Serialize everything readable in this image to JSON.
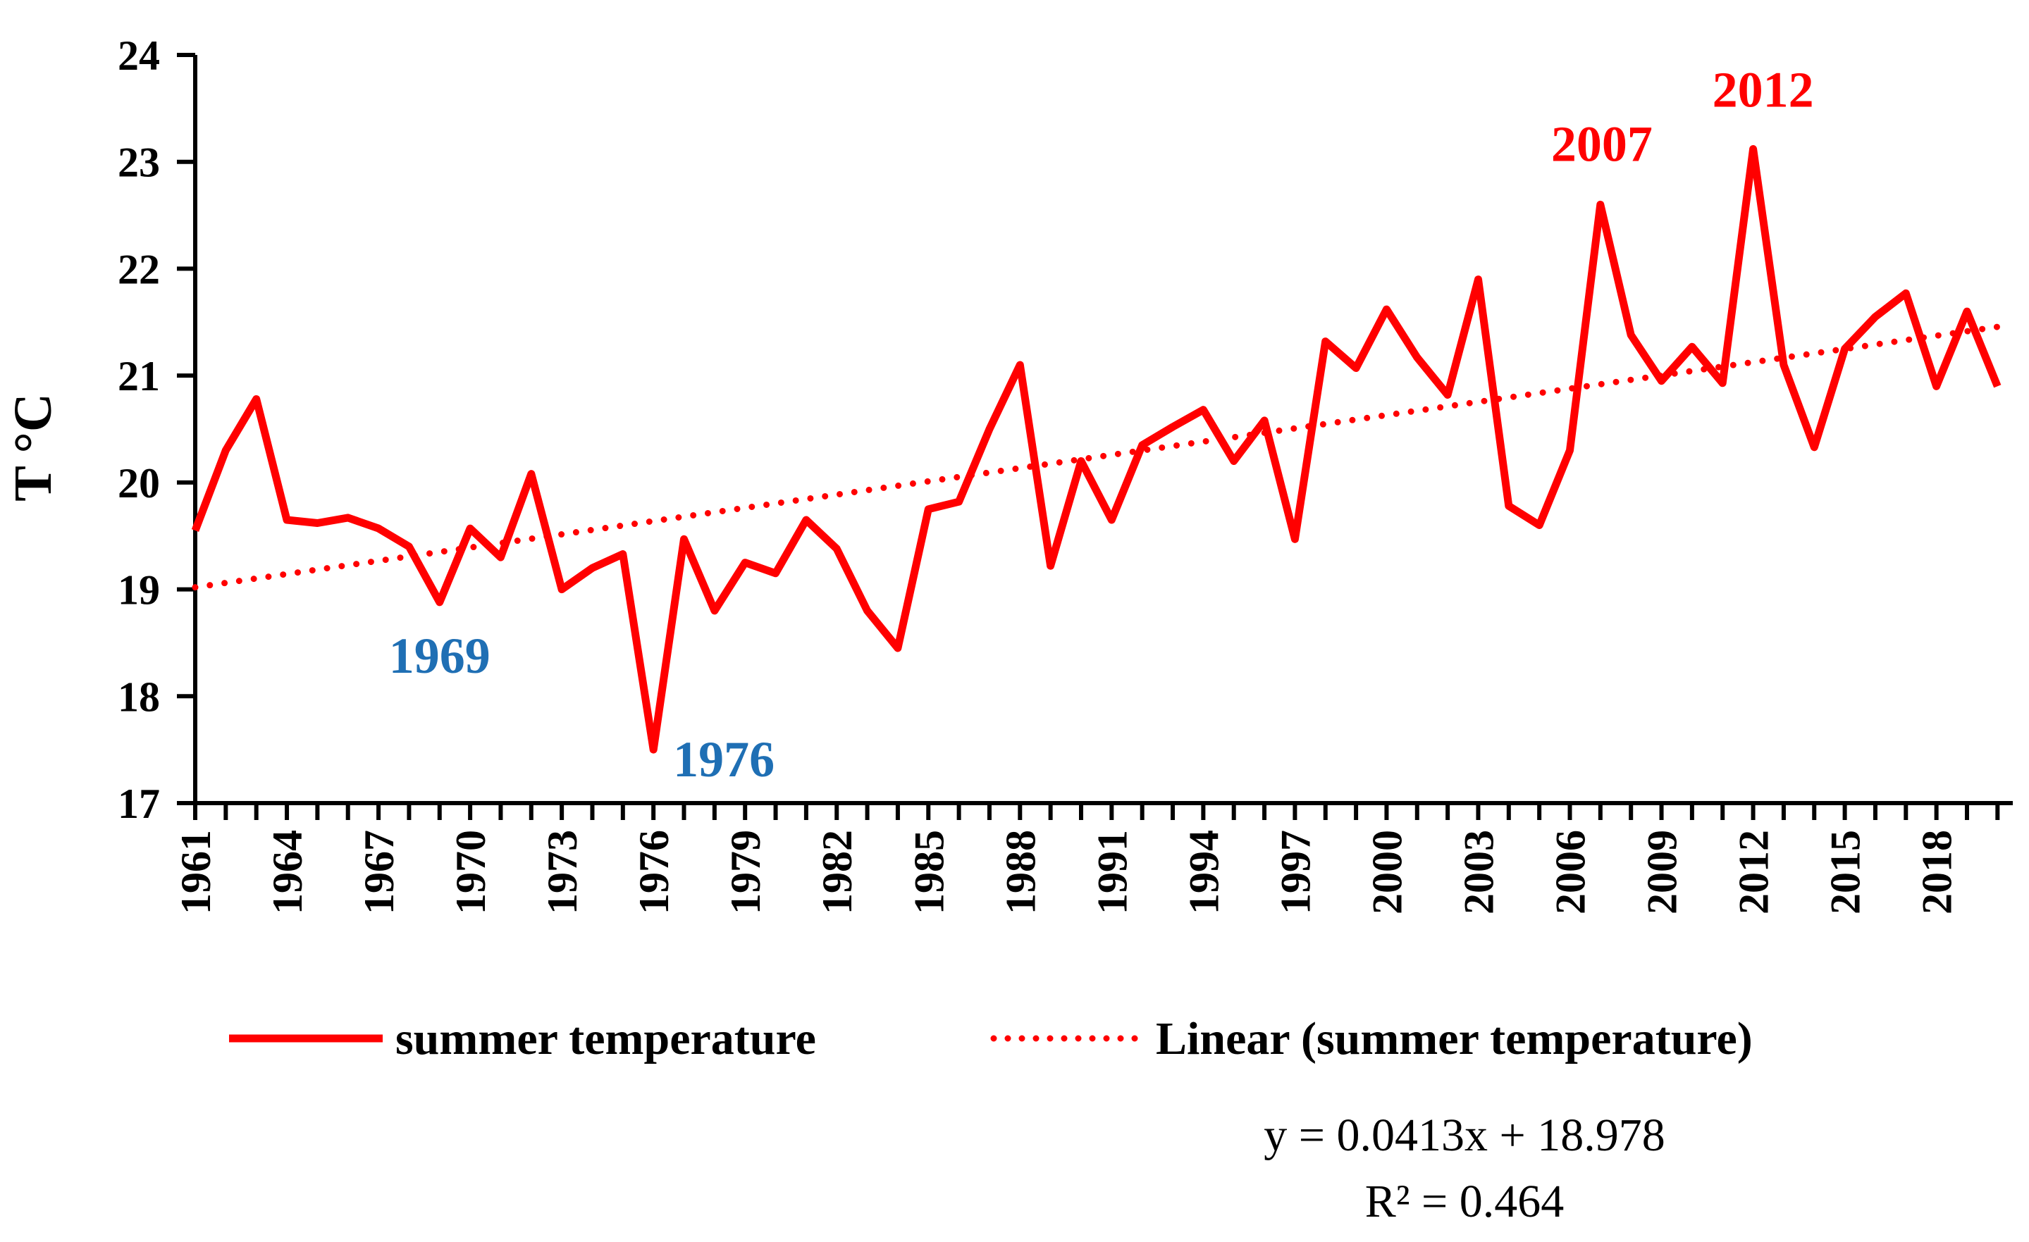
{
  "chart_data": {
    "type": "line",
    "title": "",
    "xlabel": "",
    "ylabel": "T °C",
    "xlim": [
      1961,
      2020.5
    ],
    "ylim": [
      17,
      24
    ],
    "y_ticks": [
      17,
      18,
      19,
      20,
      21,
      22,
      23,
      24
    ],
    "x_ticks": [
      1961,
      1964,
      1967,
      1970,
      1973,
      1976,
      1979,
      1982,
      1985,
      1988,
      1991,
      1994,
      1997,
      2000,
      2003,
      2006,
      2009,
      2012,
      2015,
      2018
    ],
    "grid": false,
    "legend_position": "bottom",
    "series": [
      {
        "name": "summer temperature",
        "color": "#ff0000",
        "style": "solid",
        "x": [
          1961,
          1962,
          1963,
          1964,
          1965,
          1966,
          1967,
          1968,
          1969,
          1970,
          1971,
          1972,
          1973,
          1974,
          1975,
          1976,
          1977,
          1978,
          1979,
          1980,
          1981,
          1982,
          1983,
          1984,
          1985,
          1986,
          1987,
          1988,
          1989,
          1990,
          1991,
          1992,
          1993,
          1994,
          1995,
          1996,
          1997,
          1998,
          1999,
          2000,
          2001,
          2002,
          2003,
          2004,
          2005,
          2006,
          2007,
          2008,
          2009,
          2010,
          2011,
          2012,
          2013,
          2014,
          2015,
          2016,
          2017,
          2018,
          2019,
          2020
        ],
        "values": [
          19.55,
          20.3,
          20.78,
          19.65,
          19.62,
          19.67,
          19.57,
          19.4,
          18.88,
          19.57,
          19.3,
          20.08,
          19.0,
          19.2,
          19.33,
          17.5,
          19.47,
          18.8,
          19.25,
          19.15,
          19.65,
          19.38,
          18.8,
          18.45,
          19.75,
          19.82,
          20.5,
          21.1,
          19.22,
          20.2,
          19.65,
          20.35,
          20.52,
          20.68,
          20.2,
          20.58,
          19.47,
          21.32,
          21.07,
          21.62,
          21.17,
          20.82,
          21.9,
          19.78,
          19.6,
          20.3,
          22.6,
          21.38,
          20.95,
          21.27,
          20.93,
          23.12,
          21.1,
          20.33,
          21.25,
          21.55,
          21.77,
          20.9,
          21.6,
          20.9
        ]
      },
      {
        "name": "Linear (summer temperature)",
        "color": "#ff0000",
        "style": "dotted",
        "trend": {
          "slope": 0.0413,
          "intercept": 18.978,
          "index_start": 1
        }
      }
    ],
    "annotations": [
      {
        "text": "1969",
        "x": 1969,
        "y": 18.88,
        "color": "#1f6fb4"
      },
      {
        "text": "1976",
        "x": 1976,
        "y": 17.5,
        "color": "#1f6fb4"
      },
      {
        "text": "2007",
        "x": 2007,
        "y": 22.6,
        "color": "#ff0000"
      },
      {
        "text": "2012",
        "x": 2012,
        "y": 23.12,
        "color": "#ff0000"
      }
    ],
    "equation": {
      "line1": "y = 0.0413x + 18.978",
      "line2": "R² = 0.464"
    }
  }
}
